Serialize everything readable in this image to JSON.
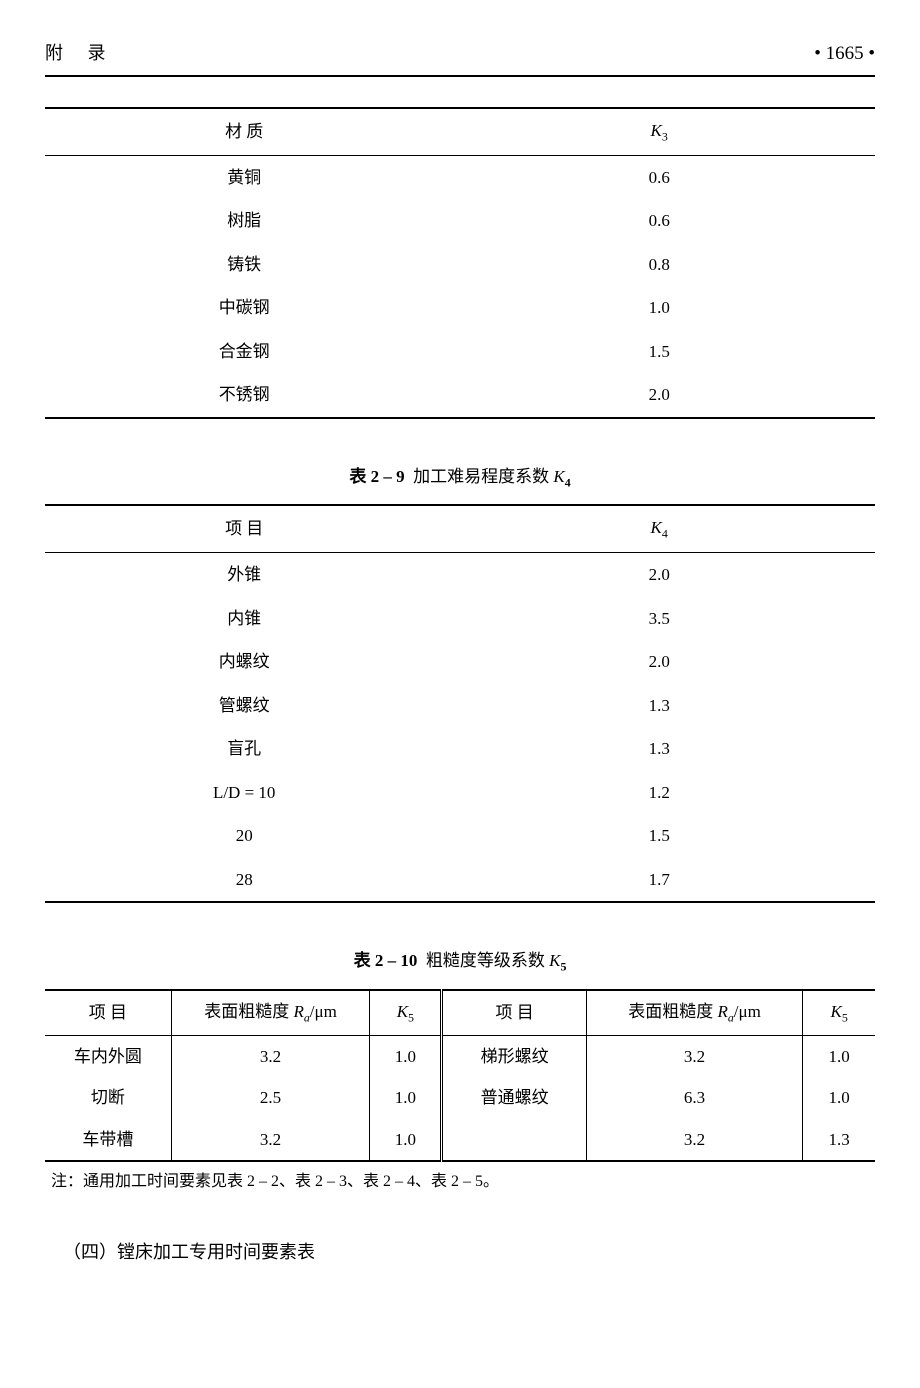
{
  "header": {
    "left": "附  录",
    "right": "• 1665 •"
  },
  "table_k3": {
    "header_material": "材  质",
    "header_k": "K",
    "header_k_sub": "3",
    "rows": [
      {
        "material": "黄铜",
        "value": "0.6"
      },
      {
        "material": "树脂",
        "value": "0.6"
      },
      {
        "material": "铸铁",
        "value": "0.8"
      },
      {
        "material": "中碳钢",
        "value": "1.0"
      },
      {
        "material": "合金钢",
        "value": "1.5"
      },
      {
        "material": "不锈钢",
        "value": "2.0"
      }
    ]
  },
  "caption_k4": {
    "label": "表 2 – 9",
    "title": "加工难易程度系数 ",
    "k": "K",
    "sub": "4"
  },
  "table_k4": {
    "header_item": "项  目",
    "header_k": "K",
    "header_k_sub": "4",
    "rows": [
      {
        "item": "外锥",
        "value": "2.0"
      },
      {
        "item": "内锥",
        "value": "3.5"
      },
      {
        "item": "内螺纹",
        "value": "2.0"
      },
      {
        "item": "管螺纹",
        "value": "1.3"
      },
      {
        "item": "盲孔",
        "value": "1.3"
      },
      {
        "item": "L/D = 10",
        "value": "1.2"
      },
      {
        "item": "20",
        "value": "1.5"
      },
      {
        "item": "28",
        "value": "1.7"
      }
    ]
  },
  "caption_k5": {
    "label": "表 2 – 10",
    "title": "粗糙度等级系数 ",
    "k": "K",
    "sub": "5"
  },
  "table_k5": {
    "h_item": "项  目",
    "h_roughness_prefix": "表面粗糙度 ",
    "h_roughness_ra": "R",
    "h_roughness_a": "a",
    "h_roughness_unit": "/μm",
    "h_k": "K",
    "h_k_sub": "5",
    "rows": [
      {
        "a1": "车内外圆",
        "a2": "3.2",
        "a3": "1.0",
        "b1": "梯形螺纹",
        "b2": "3.2",
        "b3": "1.0"
      },
      {
        "a1": "切断",
        "a2": "2.5",
        "a3": "1.0",
        "b1": "普通螺纹",
        "b2": "6.3",
        "b3": "1.0"
      },
      {
        "a1": "车带槽",
        "a2": "3.2",
        "a3": "1.0",
        "b1": "",
        "b2": "3.2",
        "b3": "1.3"
      }
    ]
  },
  "note": "注：通用加工时间要素见表 2 – 2、表 2 – 3、表 2 – 4、表 2 – 5。",
  "section_title": "（四）镗床加工专用时间要素表"
}
